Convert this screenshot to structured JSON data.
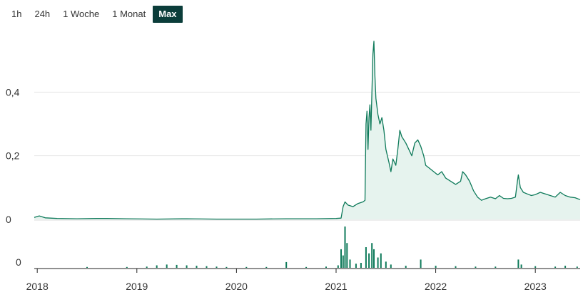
{
  "range_tabs": [
    {
      "label": "1h",
      "active": false
    },
    {
      "label": "24h",
      "active": false
    },
    {
      "label": "1 Woche",
      "active": false
    },
    {
      "label": "1 Monat",
      "active": false
    },
    {
      "label": "Max",
      "active": true
    }
  ],
  "colors": {
    "line": "#0e7a5a",
    "area": "#e6f3ee",
    "volume": "#0e7a5a",
    "grid": "#e6e6e6",
    "axis": "#222222",
    "tab_active_bg": "#0b3d3a"
  },
  "chart_data": {
    "type": "line",
    "title": "",
    "xlabel": "",
    "ylabel": "",
    "y_ticks": [
      {
        "value": 0,
        "label": "0"
      },
      {
        "value": 0.2,
        "label": "0,2"
      },
      {
        "value": 0.4,
        "label": "0,4"
      }
    ],
    "ylim": [
      0,
      0.6
    ],
    "x_ticks": [
      {
        "value": 2018.0,
        "label": "2018"
      },
      {
        "value": 2019.0,
        "label": "2019"
      },
      {
        "value": 2020.0,
        "label": "2020"
      },
      {
        "value": 2021.0,
        "label": "2021"
      },
      {
        "value": 2022.0,
        "label": "2022"
      },
      {
        "value": 2023.0,
        "label": "2023"
      }
    ],
    "xlim": [
      2017.97,
      2023.45
    ],
    "grid": true,
    "price": [
      [
        2017.97,
        0.006
      ],
      [
        2018.02,
        0.011
      ],
      [
        2018.08,
        0.005
      ],
      [
        2018.2,
        0.003
      ],
      [
        2018.4,
        0.002
      ],
      [
        2018.6,
        0.003
      ],
      [
        2018.7,
        0.003
      ],
      [
        2018.9,
        0.002
      ],
      [
        2019.2,
        0.001
      ],
      [
        2019.5,
        0.002
      ],
      [
        2019.8,
        0.001
      ],
      [
        2020.2,
        0.001
      ],
      [
        2020.5,
        0.002
      ],
      [
        2020.8,
        0.002
      ],
      [
        2021.0,
        0.003
      ],
      [
        2021.05,
        0.004
      ],
      [
        2021.07,
        0.04
      ],
      [
        2021.09,
        0.055
      ],
      [
        2021.12,
        0.045
      ],
      [
        2021.17,
        0.04
      ],
      [
        2021.22,
        0.05
      ],
      [
        2021.27,
        0.055
      ],
      [
        2021.29,
        0.06
      ],
      [
        2021.3,
        0.3
      ],
      [
        2021.31,
        0.34
      ],
      [
        2021.32,
        0.22
      ],
      [
        2021.33,
        0.32
      ],
      [
        2021.34,
        0.36
      ],
      [
        2021.35,
        0.28
      ],
      [
        2021.36,
        0.4
      ],
      [
        2021.37,
        0.52
      ],
      [
        2021.38,
        0.56
      ],
      [
        2021.39,
        0.45
      ],
      [
        2021.4,
        0.38
      ],
      [
        2021.42,
        0.33
      ],
      [
        2021.44,
        0.3
      ],
      [
        2021.46,
        0.32
      ],
      [
        2021.48,
        0.28
      ],
      [
        2021.5,
        0.22
      ],
      [
        2021.53,
        0.18
      ],
      [
        2021.55,
        0.15
      ],
      [
        2021.57,
        0.19
      ],
      [
        2021.6,
        0.17
      ],
      [
        2021.62,
        0.22
      ],
      [
        2021.64,
        0.28
      ],
      [
        2021.66,
        0.26
      ],
      [
        2021.7,
        0.24
      ],
      [
        2021.73,
        0.22
      ],
      [
        2021.76,
        0.2
      ],
      [
        2021.79,
        0.24
      ],
      [
        2021.82,
        0.25
      ],
      [
        2021.85,
        0.23
      ],
      [
        2021.88,
        0.2
      ],
      [
        2021.9,
        0.17
      ],
      [
        2021.94,
        0.16
      ],
      [
        2021.98,
        0.15
      ],
      [
        2022.02,
        0.14
      ],
      [
        2022.06,
        0.15
      ],
      [
        2022.1,
        0.13
      ],
      [
        2022.15,
        0.12
      ],
      [
        2022.2,
        0.11
      ],
      [
        2022.25,
        0.12
      ],
      [
        2022.27,
        0.15
      ],
      [
        2022.3,
        0.14
      ],
      [
        2022.34,
        0.12
      ],
      [
        2022.38,
        0.09
      ],
      [
        2022.42,
        0.07
      ],
      [
        2022.46,
        0.06
      ],
      [
        2022.5,
        0.065
      ],
      [
        2022.55,
        0.07
      ],
      [
        2022.6,
        0.065
      ],
      [
        2022.64,
        0.075
      ],
      [
        2022.68,
        0.066
      ],
      [
        2022.72,
        0.065
      ],
      [
        2022.76,
        0.066
      ],
      [
        2022.8,
        0.07
      ],
      [
        2022.82,
        0.12
      ],
      [
        2022.83,
        0.14
      ],
      [
        2022.85,
        0.1
      ],
      [
        2022.88,
        0.085
      ],
      [
        2022.92,
        0.08
      ],
      [
        2022.96,
        0.075
      ],
      [
        2023.0,
        0.078
      ],
      [
        2023.05,
        0.085
      ],
      [
        2023.1,
        0.08
      ],
      [
        2023.15,
        0.075
      ],
      [
        2023.2,
        0.07
      ],
      [
        2023.25,
        0.085
      ],
      [
        2023.3,
        0.075
      ],
      [
        2023.35,
        0.07
      ],
      [
        2023.4,
        0.068
      ],
      [
        2023.45,
        0.062
      ]
    ],
    "volume": {
      "y_ticks": [
        {
          "value": 0,
          "label": "0"
        }
      ],
      "ylim": [
        0,
        100
      ],
      "bars": [
        [
          2018.5,
          2
        ],
        [
          2018.9,
          2
        ],
        [
          2019.1,
          3
        ],
        [
          2019.2,
          6
        ],
        [
          2019.3,
          8
        ],
        [
          2019.4,
          7
        ],
        [
          2019.5,
          6
        ],
        [
          2019.6,
          5
        ],
        [
          2019.7,
          4
        ],
        [
          2019.8,
          3
        ],
        [
          2019.9,
          2
        ],
        [
          2020.1,
          2
        ],
        [
          2020.3,
          2
        ],
        [
          2020.5,
          14
        ],
        [
          2020.7,
          2
        ],
        [
          2020.9,
          3
        ],
        [
          2021.02,
          6
        ],
        [
          2021.05,
          45
        ],
        [
          2021.07,
          30
        ],
        [
          2021.09,
          100
        ],
        [
          2021.11,
          60
        ],
        [
          2021.14,
          20
        ],
        [
          2021.2,
          10
        ],
        [
          2021.25,
          12
        ],
        [
          2021.3,
          50
        ],
        [
          2021.33,
          35
        ],
        [
          2021.36,
          60
        ],
        [
          2021.38,
          45
        ],
        [
          2021.42,
          25
        ],
        [
          2021.45,
          35
        ],
        [
          2021.5,
          15
        ],
        [
          2021.55,
          8
        ],
        [
          2021.7,
          5
        ],
        [
          2021.85,
          20
        ],
        [
          2022.0,
          5
        ],
        [
          2022.2,
          4
        ],
        [
          2022.4,
          3
        ],
        [
          2022.6,
          3
        ],
        [
          2022.83,
          20
        ],
        [
          2022.86,
          8
        ],
        [
          2023.0,
          4
        ],
        [
          2023.2,
          3
        ],
        [
          2023.3,
          5
        ],
        [
          2023.42,
          3
        ]
      ]
    }
  }
}
